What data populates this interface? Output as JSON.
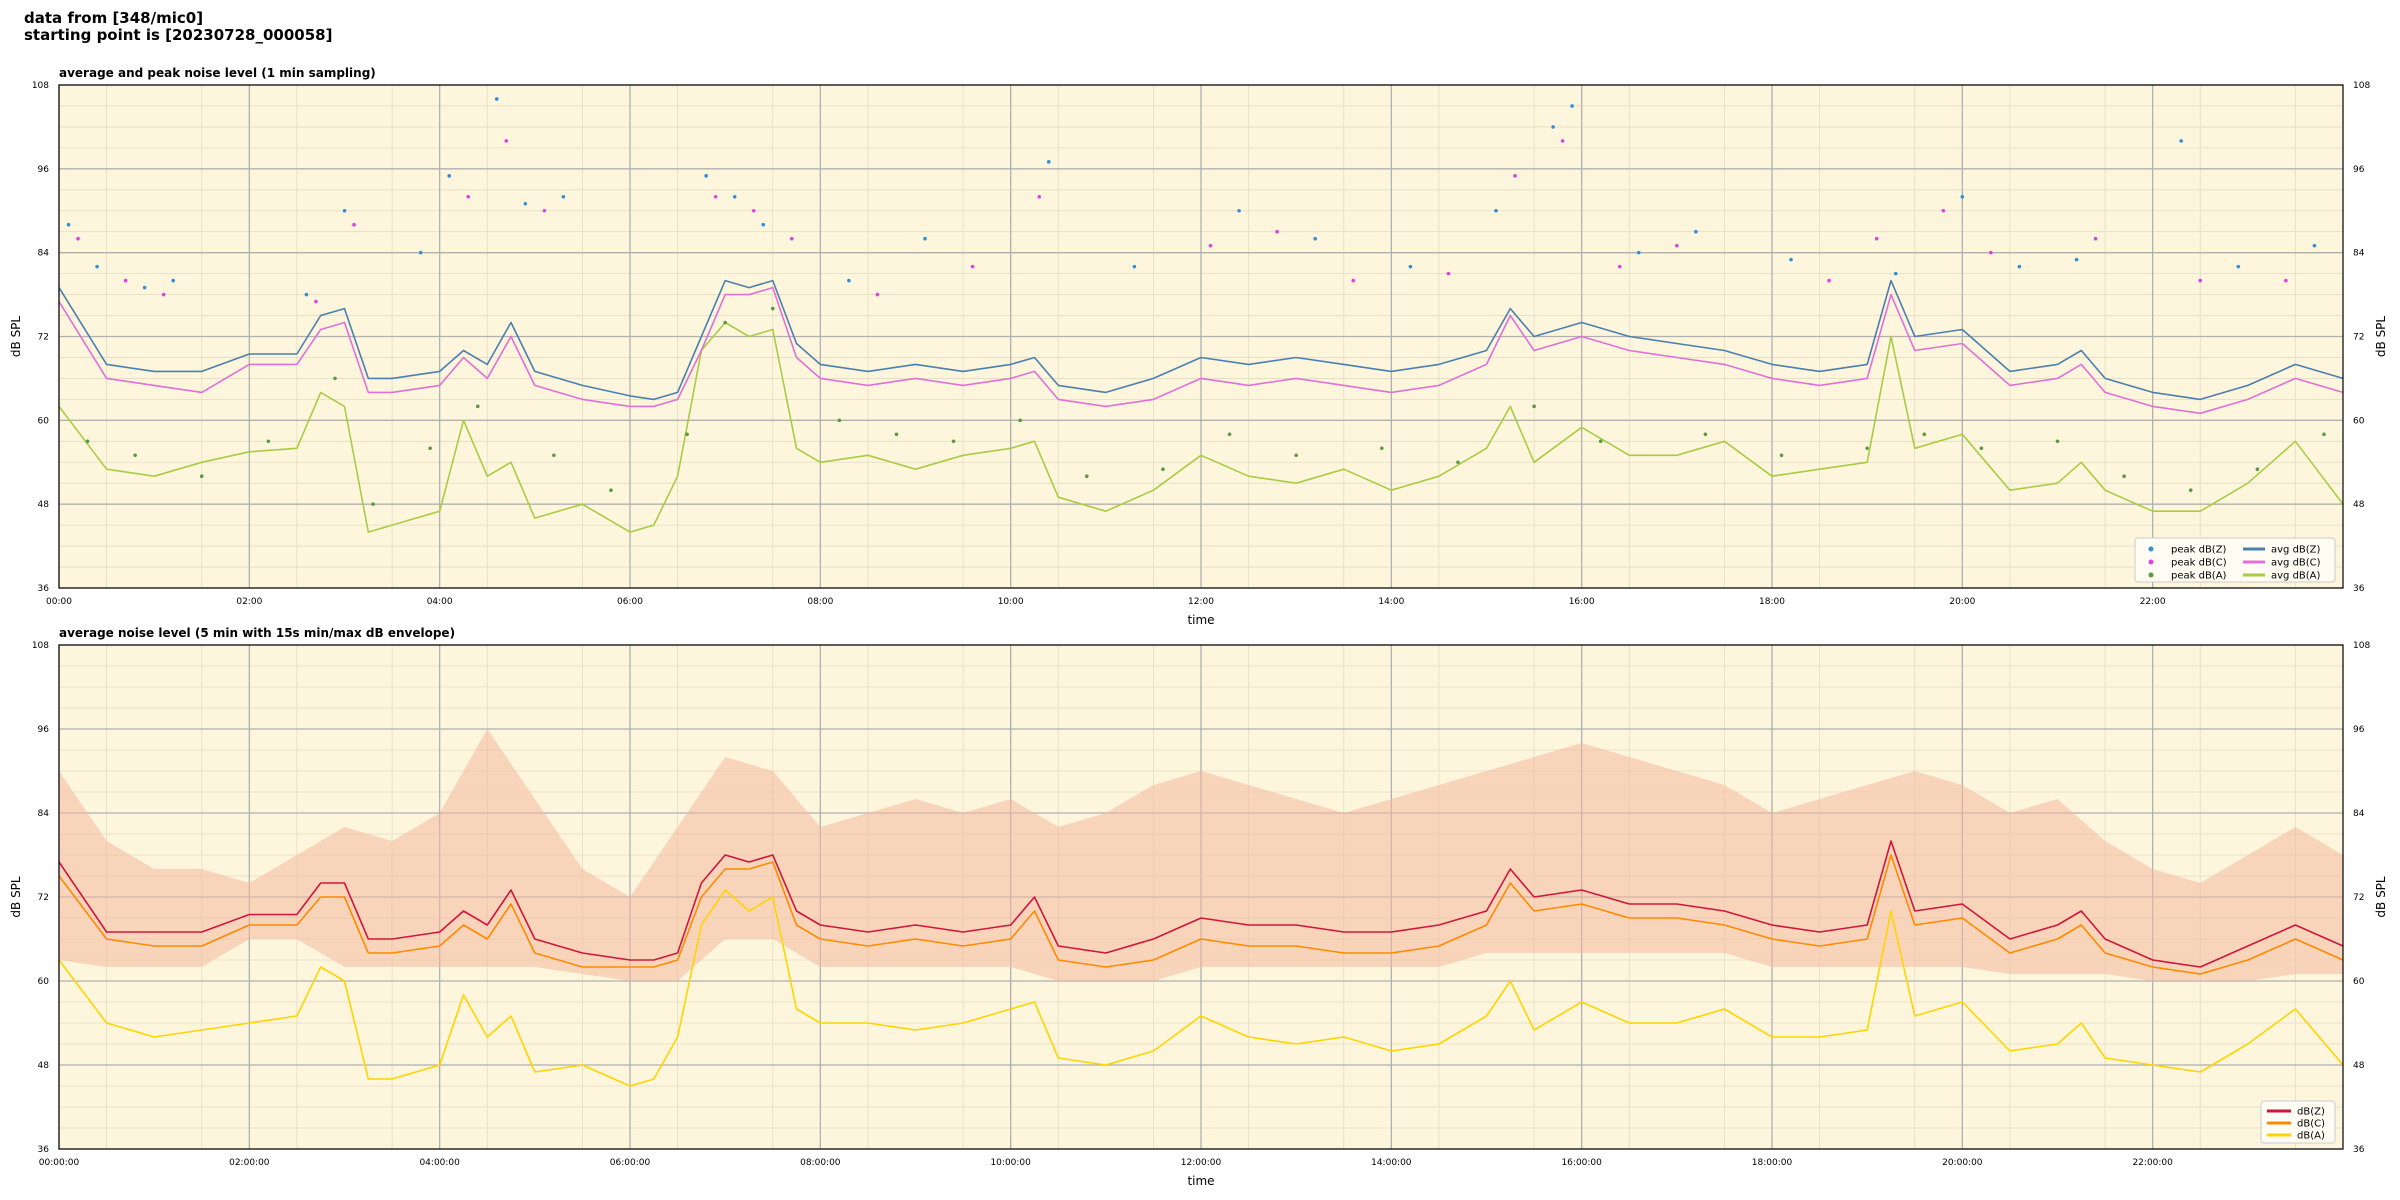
{
  "header": {
    "line1": "data from [348/mic0]",
    "line2": "starting point is [20230728_000058]"
  },
  "colors": {
    "plot_background": "#fdf6dc",
    "grid_major": "#b0b0b0",
    "grid_minor": "#e2dcc4",
    "peak_z": "#2f8fd8",
    "peak_c": "#e040e0",
    "peak_a": "#5a9a40",
    "avg_z": "#4a7fb0",
    "avg_c": "#e070d8",
    "avg_a": "#a8cc44",
    "db_z": "#d0163a",
    "db_c": "#ff8a00",
    "db_a": "#ffd400",
    "envelope": "#f4b8a0"
  },
  "chart_data": [
    {
      "type": "line",
      "title": "average and peak noise level (1 min sampling)",
      "xlabel": "time",
      "ylabel": "dB SPL",
      "xlim": [
        0,
        24
      ],
      "ylim": [
        36,
        108
      ],
      "yticks": [
        "36",
        "48",
        "60",
        "72",
        "84",
        "96",
        "108"
      ],
      "xticks": [
        "00:00",
        "02:00",
        "04:00",
        "06:00",
        "08:00",
        "10:00",
        "12:00",
        "14:00",
        "16:00",
        "18:00",
        "20:00",
        "22:00"
      ],
      "grid": true,
      "legend_position": "bottom-right",
      "legend": [
        {
          "label": "peak dB(Z)",
          "kind": "marker",
          "color_key": "peak_z"
        },
        {
          "label": "peak dB(C)",
          "kind": "marker",
          "color_key": "peak_c"
        },
        {
          "label": "peak dB(A)",
          "kind": "marker",
          "color_key": "peak_a"
        },
        {
          "label": "avg dB(Z)",
          "kind": "line",
          "color_key": "avg_z"
        },
        {
          "label": "avg dB(C)",
          "kind": "line",
          "color_key": "avg_c"
        },
        {
          "label": "avg dB(A)",
          "kind": "line",
          "color_key": "avg_a"
        }
      ],
      "x": [
        0.0,
        0.5,
        1.0,
        1.5,
        2.0,
        2.5,
        2.75,
        3.0,
        3.25,
        3.5,
        4.0,
        4.25,
        4.5,
        4.75,
        5.0,
        5.5,
        6.0,
        6.25,
        6.5,
        6.75,
        7.0,
        7.25,
        7.5,
        7.75,
        8.0,
        8.5,
        9.0,
        9.5,
        10.0,
        10.25,
        10.5,
        11.0,
        11.5,
        12.0,
        12.5,
        13.0,
        13.5,
        14.0,
        14.5,
        15.0,
        15.25,
        15.5,
        16.0,
        16.5,
        17.0,
        17.5,
        18.0,
        18.5,
        19.0,
        19.25,
        19.5,
        20.0,
        20.5,
        21.0,
        21.25,
        21.5,
        22.0,
        22.5,
        23.0,
        23.5,
        24.0
      ],
      "series": [
        {
          "name": "avg dB(Z)",
          "color_key": "avg_z",
          "values": [
            79,
            68,
            67,
            67,
            69.5,
            69.5,
            75,
            76,
            66,
            66,
            67,
            70,
            68,
            74,
            67,
            65,
            63.5,
            63,
            64,
            72,
            80,
            79,
            80,
            71,
            68,
            67,
            68,
            67,
            68,
            69,
            65,
            64,
            66,
            69,
            68,
            69,
            68,
            67,
            68,
            70,
            76,
            72,
            74,
            72,
            71,
            70,
            68,
            67,
            68,
            80,
            72,
            73,
            67,
            68,
            70,
            66,
            64,
            63,
            65,
            68,
            66
          ]
        },
        {
          "name": "avg dB(C)",
          "color_key": "avg_c",
          "values": [
            77,
            66,
            65,
            64,
            68,
            68,
            73,
            74,
            64,
            64,
            65,
            69,
            66,
            72,
            65,
            63,
            62,
            62,
            63,
            70,
            78,
            78,
            79,
            69,
            66,
            65,
            66,
            65,
            66,
            67,
            63,
            62,
            63,
            66,
            65,
            66,
            65,
            64,
            65,
            68,
            75,
            70,
            72,
            70,
            69,
            68,
            66,
            65,
            66,
            78,
            70,
            71,
            65,
            66,
            68,
            64,
            62,
            61,
            63,
            66,
            64
          ]
        },
        {
          "name": "avg dB(A)",
          "color_key": "avg_a",
          "values": [
            62,
            53,
            52,
            54,
            55.5,
            56,
            64,
            62,
            44,
            45,
            47,
            60,
            52,
            54,
            46,
            48,
            44,
            45,
            52,
            70,
            74,
            72,
            73,
            56,
            54,
            55,
            53,
            55,
            56,
            57,
            49,
            47,
            50,
            55,
            52,
            51,
            53,
            50,
            52,
            56,
            62,
            54,
            59,
            55,
            55,
            57,
            52,
            53,
            54,
            72,
            56,
            58,
            50,
            51,
            54,
            50,
            47,
            47,
            51,
            57,
            48
          ]
        }
      ],
      "peaks": [
        {
          "name": "peak dB(Z)",
          "color_key": "peak_z",
          "x": [
            0.1,
            0.4,
            0.9,
            1.2,
            2.6,
            3.0,
            3.8,
            4.1,
            4.6,
            4.9,
            5.3,
            6.8,
            7.1,
            7.4,
            8.3,
            9.1,
            10.4,
            11.3,
            12.4,
            13.2,
            14.2,
            15.1,
            15.7,
            15.9,
            16.6,
            17.2,
            18.2,
            19.3,
            20.0,
            20.6,
            21.2,
            22.3,
            22.9,
            23.7
          ],
          "y": [
            88,
            82,
            79,
            80,
            78,
            90,
            84,
            95,
            106,
            91,
            92,
            95,
            92,
            88,
            80,
            86,
            97,
            82,
            90,
            86,
            82,
            90,
            102,
            105,
            84,
            87,
            83,
            81,
            92,
            82,
            83,
            100,
            82,
            85
          ]
        },
        {
          "name": "peak dB(C)",
          "color_key": "peak_c",
          "x": [
            0.2,
            0.7,
            1.1,
            2.7,
            3.1,
            4.3,
            4.7,
            5.1,
            6.9,
            7.3,
            7.7,
            8.6,
            9.6,
            10.3,
            12.1,
            12.8,
            13.6,
            14.6,
            15.3,
            15.8,
            16.4,
            17.0,
            18.6,
            19.1,
            19.8,
            20.3,
            21.4,
            22.5,
            23.4
          ],
          "y": [
            86,
            80,
            78,
            77,
            88,
            92,
            100,
            90,
            92,
            90,
            86,
            78,
            82,
            92,
            85,
            87,
            80,
            81,
            95,
            100,
            82,
            85,
            80,
            86,
            90,
            84,
            86,
            80,
            80
          ]
        },
        {
          "name": "peak dB(A)",
          "color_key": "peak_a",
          "x": [
            0.3,
            0.8,
            1.5,
            2.2,
            2.9,
            3.3,
            3.9,
            4.4,
            5.2,
            5.8,
            6.6,
            7.0,
            7.5,
            8.2,
            8.8,
            9.4,
            10.1,
            10.8,
            11.6,
            12.3,
            13.0,
            13.9,
            14.7,
            15.5,
            16.2,
            17.3,
            18.1,
            19.0,
            19.6,
            20.2,
            21.0,
            21.7,
            22.4,
            23.1,
            23.8
          ],
          "y": [
            57,
            55,
            52,
            57,
            66,
            48,
            56,
            62,
            55,
            50,
            58,
            74,
            76,
            60,
            58,
            57,
            60,
            52,
            53,
            58,
            55,
            56,
            54,
            62,
            57,
            58,
            55,
            56,
            58,
            56,
            57,
            52,
            50,
            53,
            58
          ]
        }
      ]
    },
    {
      "type": "area",
      "title": "average noise level (5 min with 15s min/max dB envelope)",
      "xlabel": "time",
      "ylabel": "dB SPL",
      "xlim": [
        0,
        24
      ],
      "ylim": [
        36,
        108
      ],
      "yticks": [
        "36",
        "48",
        "60",
        "72",
        "84",
        "96",
        "108"
      ],
      "xticks": [
        "00:00:00",
        "02:00:00",
        "04:00:00",
        "06:00:00",
        "08:00:00",
        "10:00:00",
        "12:00:00",
        "14:00:00",
        "16:00:00",
        "18:00:00",
        "20:00:00",
        "22:00:00"
      ],
      "grid": true,
      "legend_position": "bottom-right",
      "legend": [
        {
          "label": "dB(Z)",
          "kind": "line",
          "color_key": "db_z"
        },
        {
          "label": "dB(C)",
          "kind": "line",
          "color_key": "db_c"
        },
        {
          "label": "dB(A)",
          "kind": "line",
          "color_key": "db_a"
        }
      ],
      "x": [
        0.0,
        0.5,
        1.0,
        1.5,
        2.0,
        2.5,
        2.75,
        3.0,
        3.25,
        3.5,
        4.0,
        4.25,
        4.5,
        4.75,
        5.0,
        5.5,
        6.0,
        6.25,
        6.5,
        6.75,
        7.0,
        7.25,
        7.5,
        7.75,
        8.0,
        8.5,
        9.0,
        9.5,
        10.0,
        10.25,
        10.5,
        11.0,
        11.5,
        12.0,
        12.5,
        13.0,
        13.5,
        14.0,
        14.5,
        15.0,
        15.25,
        15.5,
        16.0,
        16.5,
        17.0,
        17.5,
        18.0,
        18.5,
        19.0,
        19.25,
        19.5,
        20.0,
        20.5,
        21.0,
        21.25,
        21.5,
        22.0,
        22.5,
        23.0,
        23.5,
        24.0
      ],
      "series": [
        {
          "name": "dB(Z)",
          "color_key": "db_z",
          "values": [
            77,
            67,
            67,
            67,
            69.5,
            69.5,
            74,
            74,
            66,
            66,
            67,
            70,
            68,
            73,
            66,
            64,
            63,
            63,
            64,
            74,
            78,
            77,
            78,
            70,
            68,
            67,
            68,
            67,
            68,
            72,
            65,
            64,
            66,
            69,
            68,
            68,
            67,
            67,
            68,
            70,
            76,
            72,
            73,
            71,
            71,
            70,
            68,
            67,
            68,
            80,
            70,
            71,
            66,
            68,
            70,
            66,
            63,
            62,
            65,
            68,
            65
          ]
        },
        {
          "name": "dB(C)",
          "color_key": "db_c",
          "values": [
            75,
            66,
            65,
            65,
            68,
            68,
            72,
            72,
            64,
            64,
            65,
            68,
            66,
            71,
            64,
            62,
            62,
            62,
            63,
            72,
            76,
            76,
            77,
            68,
            66,
            65,
            66,
            65,
            66,
            70,
            63,
            62,
            63,
            66,
            65,
            65,
            64,
            64,
            65,
            68,
            74,
            70,
            71,
            69,
            69,
            68,
            66,
            65,
            66,
            78,
            68,
            69,
            64,
            66,
            68,
            64,
            62,
            61,
            63,
            66,
            63
          ]
        },
        {
          "name": "dB(A)",
          "color_key": "db_a",
          "values": [
            63,
            54,
            52,
            53,
            54,
            55,
            62,
            60,
            46,
            46,
            48,
            58,
            52,
            55,
            47,
            48,
            45,
            46,
            52,
            68,
            73,
            70,
            72,
            56,
            54,
            54,
            53,
            54,
            56,
            57,
            49,
            48,
            50,
            55,
            52,
            51,
            52,
            50,
            51,
            55,
            60,
            53,
            57,
            54,
            54,
            56,
            52,
            52,
            53,
            70,
            55,
            57,
            50,
            51,
            54,
            49,
            48,
            47,
            51,
            56,
            48
          ]
        }
      ],
      "envelope": {
        "name": "",
        "color_key": "envelope",
        "x": [
          0.0,
          0.5,
          1.0,
          1.5,
          2.0,
          2.5,
          3.0,
          3.5,
          4.0,
          4.5,
          5.0,
          5.5,
          6.0,
          6.5,
          7.0,
          7.5,
          8.0,
          8.5,
          9.0,
          9.5,
          10.0,
          10.5,
          11.0,
          11.5,
          12.0,
          12.5,
          13.0,
          13.5,
          14.0,
          14.5,
          15.0,
          15.5,
          16.0,
          16.5,
          17.0,
          17.5,
          18.0,
          18.5,
          19.0,
          19.5,
          20.0,
          20.5,
          21.0,
          21.5,
          22.0,
          22.5,
          23.0,
          23.5,
          24.0
        ],
        "max": [
          90,
          80,
          76,
          76,
          74,
          78,
          82,
          80,
          84,
          96,
          86,
          76,
          72,
          82,
          92,
          90,
          82,
          84,
          86,
          84,
          86,
          82,
          84,
          88,
          90,
          88,
          86,
          84,
          86,
          88,
          90,
          92,
          94,
          92,
          90,
          88,
          84,
          86,
          88,
          90,
          88,
          84,
          86,
          80,
          76,
          74,
          78,
          82,
          78
        ],
        "min": [
          63,
          62,
          62,
          62,
          66,
          66,
          62,
          62,
          62,
          62,
          62,
          61,
          60,
          60,
          66,
          66,
          62,
          62,
          62,
          62,
          62,
          60,
          60,
          60,
          62,
          62,
          62,
          62,
          62,
          62,
          64,
          64,
          64,
          64,
          64,
          64,
          62,
          62,
          62,
          62,
          62,
          61,
          61,
          61,
          60,
          60,
          60,
          61,
          61
        ]
      }
    }
  ]
}
